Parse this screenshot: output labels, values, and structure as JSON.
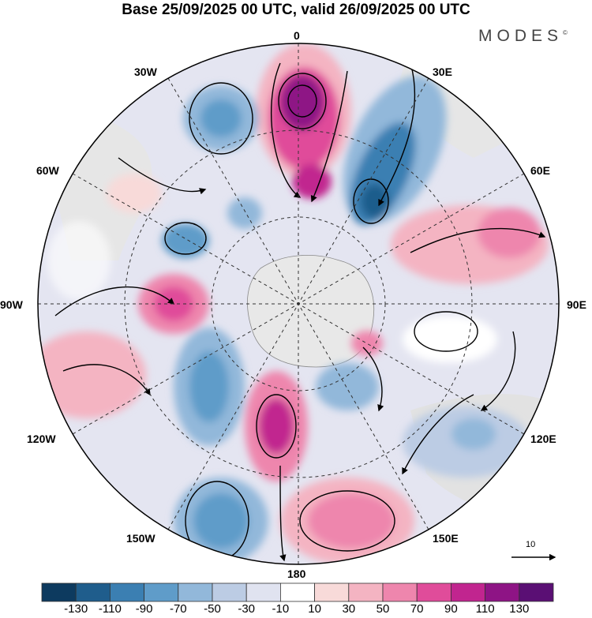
{
  "title": "Base 25/09/2025 00 UTC, valid 26/09/2025 00 UTC",
  "brand": {
    "name": "MODES",
    "mark": "©"
  },
  "map": {
    "projection": "south polar stereographic",
    "longitude_labels": {
      "deg_0": "0",
      "e30": "30E",
      "e60": "60E",
      "e90": "90E",
      "e120": "120E",
      "e150": "150E",
      "deg_180": "180",
      "w150": "150W",
      "w120": "120W",
      "w90": "90W",
      "w60": "60W",
      "w30": "30W"
    },
    "vector_reference": "10"
  },
  "colorbar": {
    "ticks": [
      "-130",
      "-110",
      "-90",
      "-70",
      "-50",
      "-30",
      "-10",
      "10",
      "30",
      "50",
      "70",
      "90",
      "110",
      "130"
    ],
    "colors": [
      "#0d3a5f",
      "#1f5d8c",
      "#3b7fb2",
      "#5f9cc9",
      "#92b8da",
      "#bccce4",
      "#e0e3f0",
      "#ffffff",
      "#f8dad9",
      "#f4b4c2",
      "#ee86ad",
      "#e04c9a",
      "#c1258f",
      "#8e1485",
      "#5a0f74"
    ]
  },
  "colors": {
    "land": "#e6e6e6",
    "negative_accent": "#3b7fb2",
    "positive_accent": "#e04c9a"
  }
}
